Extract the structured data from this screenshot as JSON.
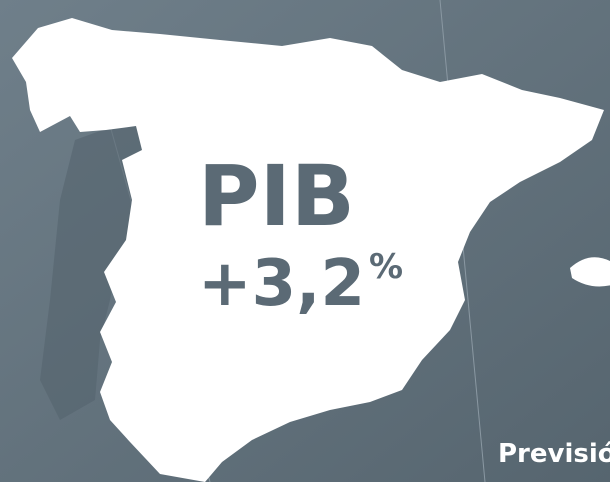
{
  "headline": {
    "title": "PIB",
    "value_label": "+3,2",
    "unit": "%"
  },
  "caption": "Previsión"
}
